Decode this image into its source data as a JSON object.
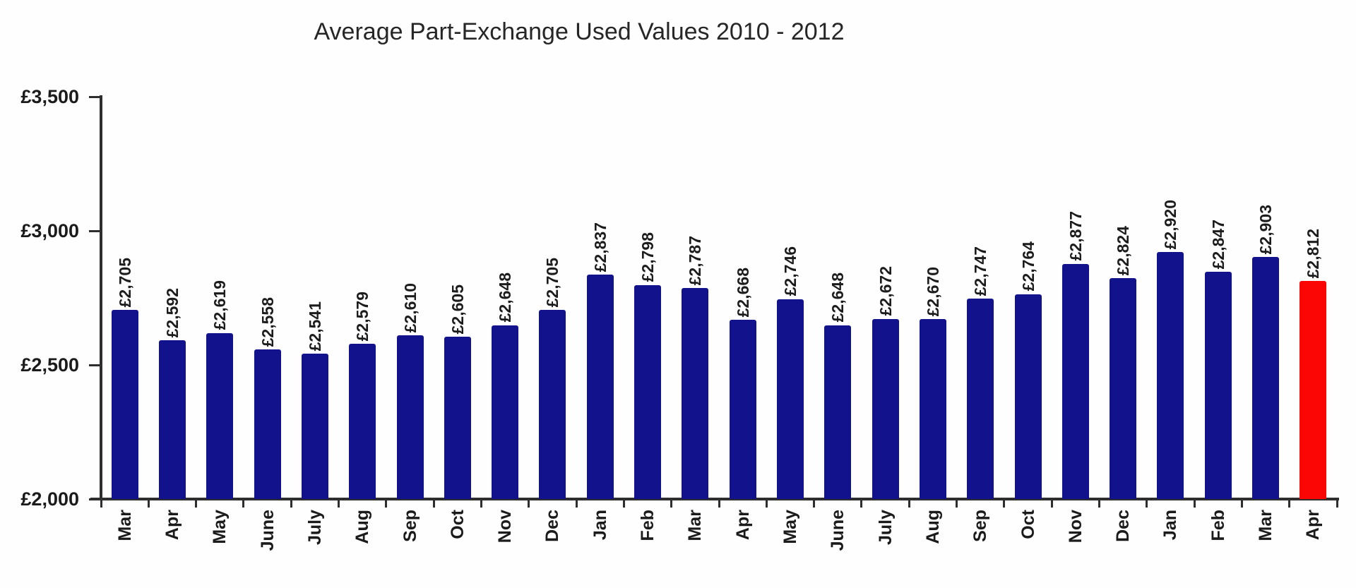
{
  "chart_data": {
    "type": "bar",
    "title": "Average Part-Exchange Used Values 2010 - 2012",
    "xlabel": "",
    "ylabel": "",
    "ylim": [
      2000,
      3500
    ],
    "grid": false,
    "legend": "none",
    "categories": [
      "Mar",
      "Apr",
      "May",
      "June",
      "July",
      "Aug",
      "Sep",
      "Oct",
      "Nov",
      "Dec",
      "Jan",
      "Feb",
      "Mar",
      "Apr",
      "May",
      "June",
      "July",
      "Aug",
      "Sep",
      "Oct",
      "Nov",
      "Dec",
      "Jan",
      "Feb",
      "Mar",
      "Apr"
    ],
    "values": [
      2705,
      2592,
      2619,
      2558,
      2541,
      2579,
      2610,
      2605,
      2648,
      2705,
      2837,
      2798,
      2787,
      2668,
      2746,
      2648,
      2672,
      2670,
      2747,
      2764,
      2877,
      2824,
      2920,
      2847,
      2903,
      2812
    ],
    "data_labels": [
      "£2,705",
      "£2,592",
      "£2,619",
      "£2,558",
      "£2,541",
      "£2,579",
      "£2,610",
      "£2,605",
      "£2,648",
      "£2,705",
      "£2,837",
      "£2,798",
      "£2,787",
      "£2,668",
      "£2,746",
      "£2,648",
      "£2,672",
      "£2,670",
      "£2,747",
      "£2,764",
      "£2,877",
      "£2,824",
      "£2,920",
      "£2,847",
      "£2,903",
      "£2,812"
    ],
    "yticks": [
      {
        "value": 2000,
        "label": "£2,000"
      },
      {
        "value": 2500,
        "label": "£2,500"
      },
      {
        "value": 3000,
        "label": "£3,000"
      },
      {
        "value": 3500,
        "label": "£3,500"
      }
    ],
    "highlight_index": 25,
    "colors": {
      "bar": "#12128c",
      "highlight": "#fb0505",
      "axis": "#2e2e2e",
      "text": "#1b1b1b"
    }
  }
}
